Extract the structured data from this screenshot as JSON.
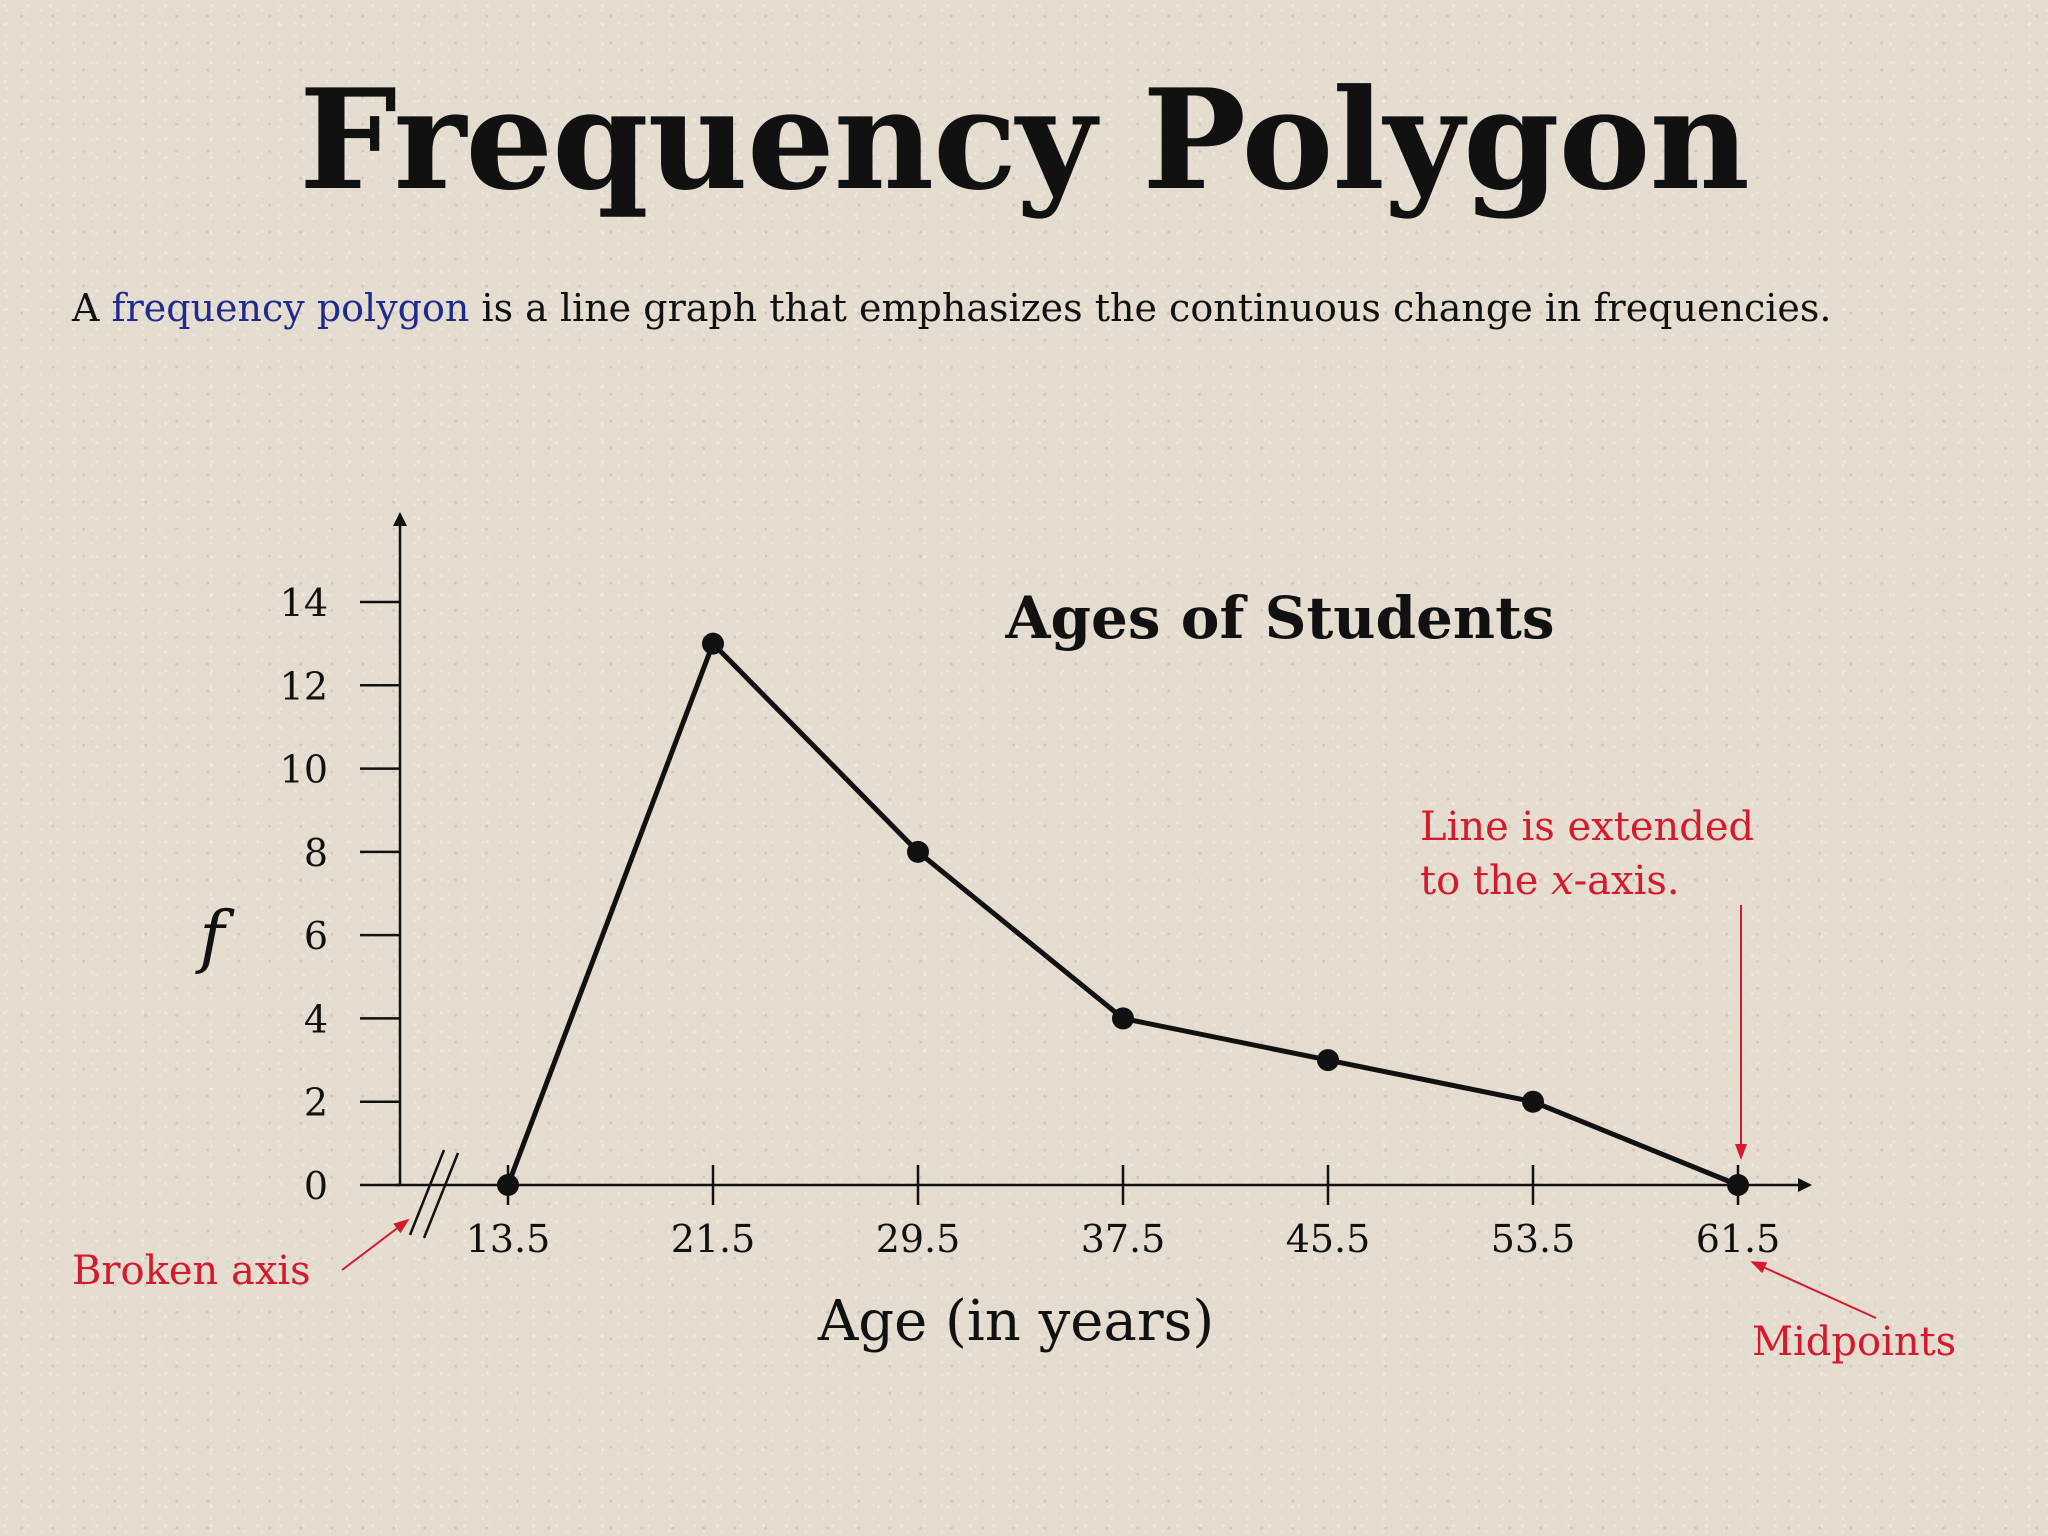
{
  "slide": {
    "title": "Frequency Polygon",
    "intro_prefix": "A ",
    "intro_term": "frequency polygon",
    "intro_suffix": " is a line graph that emphasizes the continuous change in frequencies."
  },
  "chart_data": {
    "type": "line",
    "title": "Ages of Students",
    "xlabel": "Age (in years)",
    "ylabel": "f",
    "x": [
      13.5,
      21.5,
      29.5,
      37.5,
      45.5,
      53.5,
      61.5
    ],
    "x_tick_labels": [
      "13.5",
      "21.5",
      "29.5",
      "37.5",
      "45.5",
      "53.5",
      "61.5"
    ],
    "y": [
      0,
      13,
      8,
      4,
      3,
      2,
      0
    ],
    "y_ticks": [
      0,
      2,
      4,
      6,
      8,
      10,
      12,
      14
    ],
    "ylim": [
      0,
      14
    ],
    "grid": false,
    "broken_x_axis": true,
    "annotations": {
      "broken_axis": "Broken axis",
      "extended_line_1": "Line is extended",
      "extended_line_2_pre": "to the ",
      "extended_line_2_var": "x",
      "extended_line_2_post": "-axis.",
      "midpoints": "Midpoints"
    },
    "colors": {
      "line": "#111111",
      "annotation": "#d41a2c",
      "term": "#1f2a8f"
    }
  }
}
